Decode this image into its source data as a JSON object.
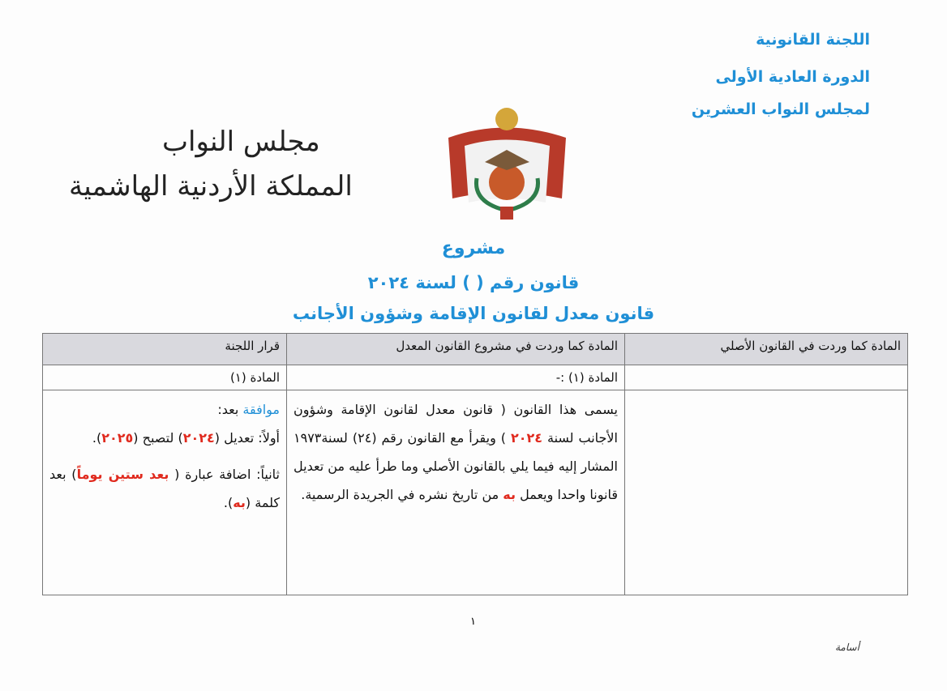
{
  "committee_header": [
    "اللجنة القانونية",
    "الدورة العادية الأولى",
    "لمجلس النواب العشرين"
  ],
  "calligraphy": {
    "line1": "مجلس النواب",
    "line2": "المملكة الأردنية الهاشمية"
  },
  "emblem": "jordan-coat-of-arms",
  "titles": {
    "draft": "مشروع",
    "law_number": "قانون رقم (   ) لسنة ٢٠٢٤",
    "law_name": "قانون معدل لقانون الإقامة وشؤون الأجانب"
  },
  "table": {
    "headers": [
      "المادة كما وردت في القانون الأصلي",
      "المادة كما وردت في مشروع القانون المعدل",
      "قرار اللجنة"
    ],
    "article_row": [
      "",
      "المادة (١) :-",
      "المادة (١)"
    ],
    "draft_text": {
      "a": "يسمى هذا القانون ( قانون معدل لقانون الإقامة وشؤون الأجانب لسنة ",
      "year": "٢٠٢٤",
      "b": " ) ويقرأ مع القانون رقم (٢٤) لسنة١٩٧٣ المشار إليه فيما يلي بالقانون الأصلي وما طرأ عليه من تعديل قانونا واحدا ويعمل ",
      "bih": "به",
      "c": " من تاريخ نشره في الجريدة الرسمية."
    },
    "decision": {
      "approve": "موافقة",
      "after": " بعد:",
      "first_a": "أولاً: تعديل (",
      "first_y1": "٢٠٢٤",
      "first_b": ") لتصبح (",
      "first_y2": "٢٠٢٥",
      "first_c": ").",
      "second_a": "ثانياً: اضافة عبارة ( ",
      "second_phrase": "بعد ستين يوماً",
      "second_b": ") بعد كلمة (",
      "second_word": "به",
      "second_c": ")."
    }
  },
  "page_number": "١",
  "signature": "أسامة"
}
